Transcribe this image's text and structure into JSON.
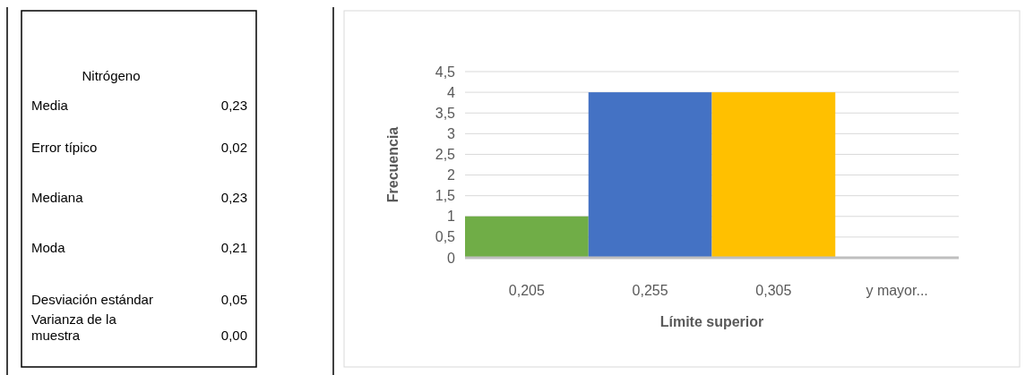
{
  "chart_data": [
    {
      "type": "other",
      "title": "Nitrógeno",
      "annotations": [
        "Media",
        "0,23",
        "Error típico",
        "0,02",
        "Mediana",
        "0,23",
        "Moda",
        "0,21",
        "Desviación estándar",
        "0,05",
        "Varianza de la muestra",
        "0,00"
      ]
    },
    {
      "type": "bar",
      "xlabel": "Límite superior",
      "ylabel": "Frecuencia",
      "categories": [
        "0,205",
        "0,255",
        "0,305",
        "y mayor..."
      ],
      "values": [
        1,
        4,
        4,
        0
      ],
      "colors": [
        "#70ad47",
        "#4472c4",
        "#ffc000",
        "#a5a5a5"
      ],
      "ylim": [
        0,
        4.5
      ],
      "yticks": [
        0,
        {
          "value": 0.5,
          "label": "0,5"
        },
        1,
        {
          "value": 1.5,
          "label": "1,5"
        },
        2,
        {
          "value": 2.5,
          "label": "2,5"
        },
        3,
        {
          "value": 3.5,
          "label": "3,5"
        },
        4,
        {
          "value": 4.5,
          "label": "4,5"
        }
      ],
      "grid": "y"
    }
  ]
}
